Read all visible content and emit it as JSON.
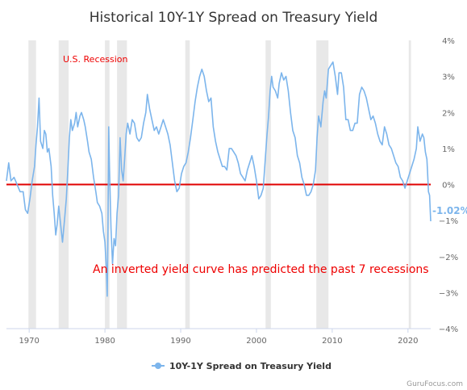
{
  "chart_data": {
    "type": "line",
    "title": "Historical 10Y-1Y Spread on Treasury Yield",
    "xlabel": "",
    "ylabel": "",
    "xlim": [
      1967,
      2023
    ],
    "ylim": [
      -4,
      4
    ],
    "x_ticks": [
      1970,
      1980,
      1990,
      2000,
      2010,
      2020
    ],
    "y_ticks": [
      4,
      3,
      2,
      1,
      0,
      -1,
      -2,
      -3,
      -4
    ],
    "y_tick_labels": [
      "4%",
      "3%",
      "2%",
      "1%",
      "0%",
      "−1%",
      "−2%",
      "−3%",
      "−4%"
    ],
    "grid": false,
    "legend_position": "bottom-center",
    "recessions": [
      [
        1969.9,
        1970.9
      ],
      [
        1973.9,
        1975.2
      ],
      [
        1980.0,
        1980.6
      ],
      [
        1981.6,
        1982.9
      ],
      [
        1990.6,
        1991.2
      ],
      [
        2001.2,
        2001.9
      ],
      [
        2007.9,
        2009.5
      ],
      [
        2020.1,
        2020.4
      ]
    ],
    "zero_line_value": 0,
    "series": [
      {
        "name": "10Y-1Y Spread on Treasury Yield",
        "color": "#7cb5ec",
        "points": [
          [
            1967.0,
            0.1
          ],
          [
            1967.3,
            0.6
          ],
          [
            1967.6,
            0.1
          ],
          [
            1968.0,
            0.2
          ],
          [
            1968.4,
            0.0
          ],
          [
            1968.8,
            -0.2
          ],
          [
            1969.2,
            -0.2
          ],
          [
            1969.5,
            -0.7
          ],
          [
            1969.8,
            -0.8
          ],
          [
            1970.1,
            -0.4
          ],
          [
            1970.4,
            0.1
          ],
          [
            1970.7,
            0.5
          ],
          [
            1970.9,
            1.1
          ],
          [
            1971.1,
            1.6
          ],
          [
            1971.3,
            2.4
          ],
          [
            1971.5,
            1.2
          ],
          [
            1971.8,
            1.0
          ],
          [
            1972.0,
            1.5
          ],
          [
            1972.2,
            1.4
          ],
          [
            1972.4,
            0.9
          ],
          [
            1972.6,
            1.0
          ],
          [
            1972.9,
            0.5
          ],
          [
            1973.1,
            -0.3
          ],
          [
            1973.3,
            -0.8
          ],
          [
            1973.5,
            -1.4
          ],
          [
            1973.7,
            -1.1
          ],
          [
            1973.9,
            -0.6
          ],
          [
            1974.2,
            -1.2
          ],
          [
            1974.4,
            -1.6
          ],
          [
            1974.7,
            -0.9
          ],
          [
            1974.9,
            -0.4
          ],
          [
            1975.1,
            0.4
          ],
          [
            1975.3,
            1.3
          ],
          [
            1975.5,
            1.8
          ],
          [
            1975.7,
            1.5
          ],
          [
            1976.0,
            1.7
          ],
          [
            1976.2,
            2.0
          ],
          [
            1976.4,
            1.6
          ],
          [
            1976.7,
            1.9
          ],
          [
            1976.9,
            2.0
          ],
          [
            1977.2,
            1.8
          ],
          [
            1977.4,
            1.6
          ],
          [
            1977.7,
            1.2
          ],
          [
            1977.9,
            0.9
          ],
          [
            1978.2,
            0.7
          ],
          [
            1978.5,
            0.2
          ],
          [
            1978.8,
            -0.2
          ],
          [
            1979.0,
            -0.5
          ],
          [
            1979.3,
            -0.6
          ],
          [
            1979.6,
            -0.8
          ],
          [
            1979.8,
            -1.3
          ],
          [
            1980.0,
            -1.6
          ],
          [
            1980.2,
            -2.4
          ],
          [
            1980.3,
            -3.1
          ],
          [
            1980.4,
            -1.2
          ],
          [
            1980.5,
            1.6
          ],
          [
            1980.6,
            0.5
          ],
          [
            1980.8,
            -1.2
          ],
          [
            1981.0,
            -2.2
          ],
          [
            1981.2,
            -1.5
          ],
          [
            1981.4,
            -1.7
          ],
          [
            1981.6,
            -0.8
          ],
          [
            1981.8,
            -0.3
          ],
          [
            1982.0,
            1.3
          ],
          [
            1982.2,
            0.4
          ],
          [
            1982.4,
            0.1
          ],
          [
            1982.6,
            0.7
          ],
          [
            1982.8,
            1.4
          ],
          [
            1983.0,
            1.7
          ],
          [
            1983.3,
            1.4
          ],
          [
            1983.6,
            1.8
          ],
          [
            1983.9,
            1.7
          ],
          [
            1984.2,
            1.3
          ],
          [
            1984.5,
            1.2
          ],
          [
            1984.8,
            1.3
          ],
          [
            1985.1,
            1.7
          ],
          [
            1985.4,
            2.0
          ],
          [
            1985.6,
            2.5
          ],
          [
            1985.9,
            2.1
          ],
          [
            1986.2,
            1.8
          ],
          [
            1986.5,
            1.5
          ],
          [
            1986.8,
            1.6
          ],
          [
            1987.1,
            1.4
          ],
          [
            1987.4,
            1.6
          ],
          [
            1987.7,
            1.8
          ],
          [
            1988.0,
            1.6
          ],
          [
            1988.3,
            1.4
          ],
          [
            1988.6,
            1.1
          ],
          [
            1988.9,
            0.6
          ],
          [
            1989.2,
            0.1
          ],
          [
            1989.5,
            -0.2
          ],
          [
            1989.8,
            -0.1
          ],
          [
            1990.1,
            0.3
          ],
          [
            1990.4,
            0.5
          ],
          [
            1990.7,
            0.6
          ],
          [
            1991.0,
            0.9
          ],
          [
            1991.3,
            1.3
          ],
          [
            1991.6,
            1.8
          ],
          [
            1991.9,
            2.3
          ],
          [
            1992.2,
            2.7
          ],
          [
            1992.5,
            3.0
          ],
          [
            1992.8,
            3.2
          ],
          [
            1993.1,
            3.0
          ],
          [
            1993.4,
            2.6
          ],
          [
            1993.7,
            2.3
          ],
          [
            1994.0,
            2.4
          ],
          [
            1994.3,
            1.6
          ],
          [
            1994.6,
            1.2
          ],
          [
            1994.9,
            0.9
          ],
          [
            1995.2,
            0.7
          ],
          [
            1995.5,
            0.5
          ],
          [
            1995.8,
            0.5
          ],
          [
            1996.1,
            0.4
          ],
          [
            1996.4,
            1.0
          ],
          [
            1996.7,
            1.0
          ],
          [
            1997.0,
            0.9
          ],
          [
            1997.3,
            0.8
          ],
          [
            1997.6,
            0.6
          ],
          [
            1997.9,
            0.3
          ],
          [
            1998.2,
            0.2
          ],
          [
            1998.5,
            0.1
          ],
          [
            1998.8,
            0.4
          ],
          [
            1999.1,
            0.6
          ],
          [
            1999.4,
            0.8
          ],
          [
            1999.7,
            0.5
          ],
          [
            2000.0,
            0.1
          ],
          [
            2000.3,
            -0.4
          ],
          [
            2000.6,
            -0.3
          ],
          [
            2000.9,
            -0.1
          ],
          [
            2001.2,
            0.8
          ],
          [
            2001.4,
            1.4
          ],
          [
            2001.6,
            1.9
          ],
          [
            2001.8,
            2.6
          ],
          [
            2002.0,
            3.0
          ],
          [
            2002.2,
            2.7
          ],
          [
            2002.5,
            2.6
          ],
          [
            2002.8,
            2.4
          ],
          [
            2003.0,
            2.8
          ],
          [
            2003.3,
            3.1
          ],
          [
            2003.6,
            2.9
          ],
          [
            2003.9,
            3.0
          ],
          [
            2004.2,
            2.6
          ],
          [
            2004.5,
            2.0
          ],
          [
            2004.8,
            1.5
          ],
          [
            2005.1,
            1.3
          ],
          [
            2005.4,
            0.8
          ],
          [
            2005.7,
            0.6
          ],
          [
            2006.0,
            0.2
          ],
          [
            2006.3,
            0.0
          ],
          [
            2006.6,
            -0.3
          ],
          [
            2006.9,
            -0.3
          ],
          [
            2007.2,
            -0.2
          ],
          [
            2007.5,
            0.0
          ],
          [
            2007.8,
            0.4
          ],
          [
            2008.0,
            1.3
          ],
          [
            2008.2,
            1.9
          ],
          [
            2008.5,
            1.6
          ],
          [
            2008.8,
            2.3
          ],
          [
            2009.0,
            2.6
          ],
          [
            2009.2,
            2.4
          ],
          [
            2009.5,
            3.2
          ],
          [
            2009.8,
            3.3
          ],
          [
            2010.1,
            3.4
          ],
          [
            2010.4,
            3.0
          ],
          [
            2010.7,
            2.5
          ],
          [
            2010.9,
            3.1
          ],
          [
            2011.2,
            3.1
          ],
          [
            2011.5,
            2.7
          ],
          [
            2011.8,
            1.8
          ],
          [
            2012.1,
            1.8
          ],
          [
            2012.4,
            1.5
          ],
          [
            2012.7,
            1.5
          ],
          [
            2013.0,
            1.7
          ],
          [
            2013.3,
            1.7
          ],
          [
            2013.6,
            2.5
          ],
          [
            2013.9,
            2.7
          ],
          [
            2014.2,
            2.6
          ],
          [
            2014.5,
            2.4
          ],
          [
            2014.8,
            2.1
          ],
          [
            2015.1,
            1.8
          ],
          [
            2015.4,
            1.9
          ],
          [
            2015.7,
            1.7
          ],
          [
            2016.0,
            1.4
          ],
          [
            2016.3,
            1.2
          ],
          [
            2016.6,
            1.1
          ],
          [
            2016.9,
            1.6
          ],
          [
            2017.2,
            1.4
          ],
          [
            2017.5,
            1.1
          ],
          [
            2017.8,
            1.0
          ],
          [
            2018.1,
            0.8
          ],
          [
            2018.4,
            0.6
          ],
          [
            2018.7,
            0.5
          ],
          [
            2019.0,
            0.2
          ],
          [
            2019.3,
            0.1
          ],
          [
            2019.6,
            -0.1
          ],
          [
            2019.9,
            0.1
          ],
          [
            2020.2,
            0.3
          ],
          [
            2020.5,
            0.5
          ],
          [
            2020.8,
            0.7
          ],
          [
            2021.1,
            1.0
          ],
          [
            2021.3,
            1.6
          ],
          [
            2021.6,
            1.2
          ],
          [
            2021.9,
            1.4
          ],
          [
            2022.1,
            1.3
          ],
          [
            2022.3,
            0.9
          ],
          [
            2022.5,
            0.7
          ],
          [
            2022.6,
            0.3
          ],
          [
            2022.7,
            -0.2
          ],
          [
            2022.85,
            -0.3
          ],
          [
            2023.0,
            -1.02
          ]
        ]
      }
    ],
    "last_value_label": "-1.02%",
    "annotations": [
      {
        "text": "U.S. Recession"
      },
      {
        "text": "An inverted yield curve has predicted the past 7 recessions"
      }
    ]
  },
  "legend": {
    "label": "10Y-1Y Spread on Treasury Yield"
  },
  "credit": "GuruFocus.com",
  "colors": {
    "line": "#7cb5ec",
    "zero_line": "#e00000",
    "recession_band": "#e8e8e8",
    "annotation": "#ee0000"
  }
}
